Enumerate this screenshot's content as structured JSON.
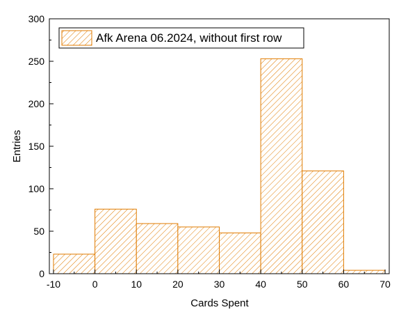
{
  "chart_data": {
    "type": "bar",
    "style": "histogram",
    "bins": [
      {
        "start": -10,
        "end": 0,
        "value": 23
      },
      {
        "start": 0,
        "end": 10,
        "value": 76
      },
      {
        "start": 10,
        "end": 20,
        "value": 59
      },
      {
        "start": 20,
        "end": 30,
        "value": 55
      },
      {
        "start": 30,
        "end": 40,
        "value": 48
      },
      {
        "start": 40,
        "end": 50,
        "value": 253
      },
      {
        "start": 50,
        "end": 60,
        "value": 121
      },
      {
        "start": 60,
        "end": 70,
        "value": 4
      }
    ],
    "series": [
      {
        "name": "Afk Arena 06.2024, without first row"
      }
    ],
    "xlabel": "Cards Spent",
    "ylabel": "Entries",
    "xlim": [
      -11,
      71
    ],
    "ylim": [
      0,
      300
    ],
    "xticks": [
      -10,
      0,
      10,
      20,
      30,
      40,
      50,
      60,
      70
    ],
    "yticks": [
      0,
      50,
      100,
      150,
      200,
      250,
      300
    ],
    "grid": false,
    "legend_position": "top-left",
    "colors": {
      "bar_stroke": "#e07b00",
      "hatch": "#e07b00",
      "bar_fill": "#ffffff",
      "axis": "#000000"
    }
  }
}
